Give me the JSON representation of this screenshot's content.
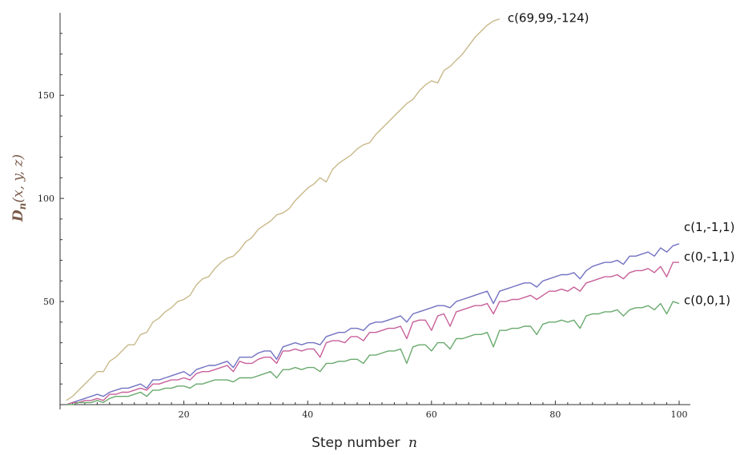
{
  "chart_data": {
    "type": "line",
    "xlabel": "Step number",
    "xlabel_var": "n",
    "ylabel": "D_n(x, y, z)",
    "ylabel_parts": {
      "D": "D",
      "n": "n",
      "args": "(x, y, z)"
    },
    "xlim": [
      0,
      100
    ],
    "ylim": [
      0,
      190
    ],
    "x_ticks": [
      20,
      40,
      60,
      80,
      100
    ],
    "y_ticks": [
      50,
      100,
      150
    ],
    "grid": false,
    "legend": "labels at line ends",
    "series": [
      {
        "name": "c(69,99,-124)",
        "color": "#c8b98a",
        "x_start": 1,
        "values": [
          2,
          4,
          7,
          10,
          13,
          16,
          16,
          21,
          23,
          26,
          29,
          29,
          34,
          35,
          40,
          42,
          45,
          47,
          50,
          51,
          53,
          58,
          61,
          62,
          66,
          69,
          71,
          72,
          75,
          79,
          81,
          85,
          87,
          89,
          92,
          93,
          95,
          99,
          102,
          105,
          107,
          110,
          108,
          114,
          117,
          119,
          121,
          124,
          126,
          127,
          131,
          134,
          137,
          140,
          143,
          146,
          148,
          152,
          155,
          157,
          156,
          162,
          164,
          167,
          170,
          174,
          178,
          181,
          184,
          186,
          187
        ]
      },
      {
        "name": "c(1,-1,1)",
        "color": "#7272c2",
        "x_start": 1,
        "values": [
          0,
          1,
          2,
          3,
          4,
          5,
          4,
          6,
          7,
          8,
          8,
          9,
          10,
          8,
          12,
          12,
          13,
          14,
          15,
          16,
          14,
          17,
          18,
          19,
          19,
          20,
          21,
          18,
          23,
          23,
          23,
          25,
          26,
          26,
          22,
          28,
          29,
          30,
          29,
          30,
          30,
          29,
          33,
          34,
          35,
          35,
          37,
          37,
          36,
          39,
          40,
          40,
          41,
          42,
          43,
          40,
          44,
          45,
          46,
          47,
          48,
          48,
          47,
          50,
          51,
          52,
          53,
          54,
          55,
          49,
          55,
          56,
          57,
          58,
          59,
          59,
          57,
          60,
          61,
          62,
          63,
          63,
          64,
          61,
          65,
          67,
          68,
          69,
          69,
          70,
          68,
          72,
          72,
          73,
          74,
          72,
          76,
          74,
          77,
          78
        ]
      },
      {
        "name": "c(0,-1,1)",
        "color": "#c8609a",
        "x_start": 1,
        "values": [
          0,
          1,
          1,
          2,
          2,
          3,
          2,
          5,
          5,
          6,
          6,
          7,
          8,
          7,
          10,
          10,
          11,
          12,
          12,
          13,
          12,
          15,
          16,
          16,
          17,
          18,
          19,
          16,
          21,
          20,
          20,
          22,
          23,
          23,
          20,
          26,
          26,
          27,
          26,
          27,
          27,
          23,
          30,
          31,
          31,
          30,
          33,
          33,
          31,
          35,
          35,
          36,
          37,
          37,
          38,
          32,
          40,
          41,
          41,
          36,
          43,
          44,
          38,
          45,
          46,
          47,
          48,
          48,
          49,
          44,
          50,
          50,
          51,
          51,
          52,
          53,
          51,
          53,
          55,
          55,
          56,
          55,
          57,
          55,
          59,
          60,
          61,
          62,
          62,
          63,
          61,
          64,
          65,
          65,
          66,
          64,
          67,
          62,
          69,
          69
        ]
      },
      {
        "name": "c(0,0,1)",
        "color": "#6aaa6e",
        "x_start": 1,
        "values": [
          0,
          0,
          1,
          1,
          1,
          2,
          1,
          3,
          4,
          4,
          4,
          5,
          6,
          4,
          7,
          7,
          8,
          8,
          9,
          9,
          8,
          10,
          10,
          11,
          12,
          12,
          12,
          11,
          13,
          13,
          13,
          14,
          15,
          16,
          13,
          17,
          17,
          18,
          17,
          18,
          18,
          16,
          20,
          20,
          21,
          21,
          22,
          22,
          20,
          24,
          24,
          25,
          26,
          26,
          27,
          20,
          28,
          29,
          29,
          26,
          30,
          30,
          27,
          32,
          32,
          33,
          34,
          34,
          35,
          28,
          36,
          36,
          37,
          37,
          38,
          38,
          34,
          39,
          40,
          40,
          41,
          40,
          41,
          37,
          43,
          44,
          44,
          45,
          45,
          46,
          43,
          46,
          47,
          47,
          48,
          46,
          49,
          44,
          50,
          49
        ]
      }
    ]
  }
}
